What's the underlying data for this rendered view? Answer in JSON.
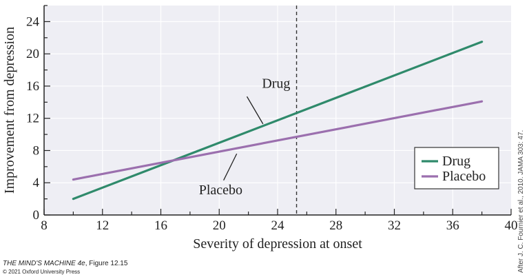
{
  "chart_data": {
    "type": "line",
    "xlabel": "Severity of depression at onset",
    "ylabel": "Improvement from depression",
    "xlim": [
      8,
      40
    ],
    "ylim": [
      0,
      26
    ],
    "xticks": [
      8,
      12,
      16,
      20,
      24,
      28,
      32,
      36,
      40
    ],
    "yticks": [
      0,
      4,
      8,
      12,
      16,
      20,
      24
    ],
    "grid": true,
    "background": "#eeeef4",
    "series": [
      {
        "name": "Drug",
        "color": "#2f8a6b",
        "x": [
          10,
          38
        ],
        "y": [
          2.0,
          21.5
        ]
      },
      {
        "name": "Placebo",
        "color": "#9b6fae",
        "x": [
          10,
          38
        ],
        "y": [
          4.4,
          14.1
        ]
      }
    ],
    "threshold_line": {
      "x": 25.3,
      "style": "dashed"
    },
    "annotations": [
      {
        "text": "Drug",
        "x": 23.9,
        "y": 16.3
      },
      {
        "text": "Placebo",
        "x": 20.1,
        "y": 3.1
      }
    ],
    "legend": {
      "position": "bottom-right",
      "entries": [
        "Drug",
        "Placebo"
      ]
    }
  },
  "credits": {
    "figure_book": "THE MIND'S MACHINE 4e",
    "figure_ref": ", Figure 12.15",
    "copyright": "© 2021 Oxford University Press",
    "source": "After J. C. Fournier et al., 2010. JAMA 303: 47."
  }
}
